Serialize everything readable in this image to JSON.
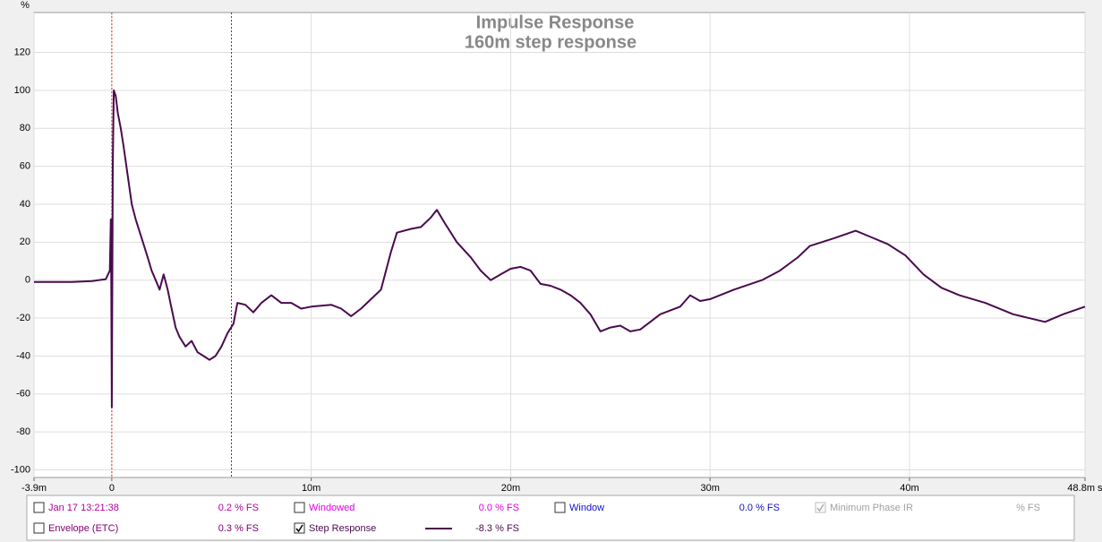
{
  "chart_data": {
    "type": "line",
    "title": "Impulse Response",
    "subtitle": "160m step response",
    "y_label": "%",
    "xlim": [
      -3.9,
      48.8
    ],
    "ylim": [
      -104,
      141
    ],
    "xticks": [
      {
        "value": -3.9,
        "label": "-3.9m"
      },
      0,
      {
        "value": 10,
        "label": "10m"
      },
      {
        "value": 20,
        "label": "20m"
      },
      {
        "value": 30,
        "label": "30m"
      },
      {
        "value": 40,
        "label": "40m"
      },
      {
        "value": 48.8,
        "label": "48.8m s"
      }
    ],
    "yticks": [
      -100,
      -80,
      -60,
      -40,
      -20,
      0,
      20,
      40,
      60,
      80,
      100,
      120
    ],
    "grid": true,
    "markers": [
      {
        "x": 0,
        "color": "#e03030"
      },
      {
        "x": 6,
        "color": "#404040"
      }
    ],
    "series": [
      {
        "name": "Step Response",
        "color": "#4a0a4f",
        "x": [
          -3.9,
          -2,
          -1,
          -0.3,
          -0.1,
          -0.05,
          -0.03,
          0,
          0.05,
          0.1,
          0.2,
          0.3,
          0.45,
          0.6,
          0.8,
          1.0,
          1.2,
          1.5,
          1.8,
          2.0,
          2.2,
          2.4,
          2.6,
          2.8,
          3.0,
          3.2,
          3.4,
          3.7,
          4.0,
          4.3,
          4.6,
          4.9,
          5.2,
          5.5,
          5.8,
          6.1,
          6.3,
          6.7,
          7.1,
          7.5,
          8.0,
          8.5,
          9.0,
          9.5,
          10.0,
          11.0,
          11.5,
          12.0,
          12.5,
          13.0,
          13.5,
          14.0,
          14.3,
          15.0,
          15.5,
          16.0,
          16.3,
          16.7,
          17.3,
          18.0,
          18.5,
          19.0,
          19.5,
          20.0,
          20.5,
          21.0,
          21.5,
          22.0,
          22.5,
          23.0,
          23.5,
          24.0,
          24.5,
          25.0,
          25.5,
          26.0,
          26.5,
          27.0,
          27.5,
          28.0,
          28.5,
          29.0,
          29.5,
          30.0,
          31.2,
          32.6,
          33.5,
          34.4,
          35.0,
          36.2,
          37.3,
          38.0,
          38.9,
          39.8,
          40.7,
          41.6,
          42.5,
          43.8,
          45.2,
          46.8,
          47.7,
          48.8
        ],
        "values": [
          -1,
          -1,
          -0.5,
          0.5,
          5,
          32,
          10,
          -67,
          60,
          100,
          97,
          88,
          80,
          70,
          55,
          40,
          32,
          22,
          12,
          5,
          0,
          -5,
          3,
          -5,
          -15,
          -25,
          -30,
          -35,
          -32,
          -38,
          -40,
          -42,
          -40,
          -35,
          -28,
          -23,
          -12,
          -13,
          -17,
          -12,
          -8,
          -12,
          -12,
          -15,
          -14,
          -13,
          -15,
          -19,
          -15,
          -10,
          -5,
          15,
          25,
          27,
          28,
          33,
          37,
          30,
          20,
          12,
          5,
          0,
          3,
          6,
          7,
          5,
          -2,
          -3,
          -5,
          -8,
          -12,
          -18,
          -27,
          -25,
          -24,
          -27,
          -26,
          -22,
          -18,
          -16,
          -14,
          -8,
          -11,
          -10,
          -5,
          0,
          5,
          12,
          18,
          22,
          26,
          23,
          19,
          13,
          3,
          -4,
          -8,
          -12,
          -18,
          -22,
          -18,
          -14
        ]
      }
    ]
  },
  "panel": {
    "items": [
      {
        "label": "Jan 17 13:21:38",
        "reading": "0.2 % FS",
        "color": "#b0009a",
        "checked": false
      },
      {
        "label": "Windowed",
        "reading": "0.0 % FS",
        "color": "#e000e0",
        "checked": false
      },
      {
        "label": "Window",
        "reading": "0.0 % FS",
        "color": "#1010d0",
        "checked": false
      },
      {
        "label": "Minimum Phase IR",
        "reading": "% FS",
        "color": "#a0a0a0",
        "checked": true
      },
      {
        "label": "Envelope (ETC)",
        "reading": "0.3 % FS",
        "color": "#800070",
        "checked": false
      },
      {
        "reading": "-8.3 % FS",
        "color": "#4a0a4f",
        "checked": true
      }
    ]
  }
}
